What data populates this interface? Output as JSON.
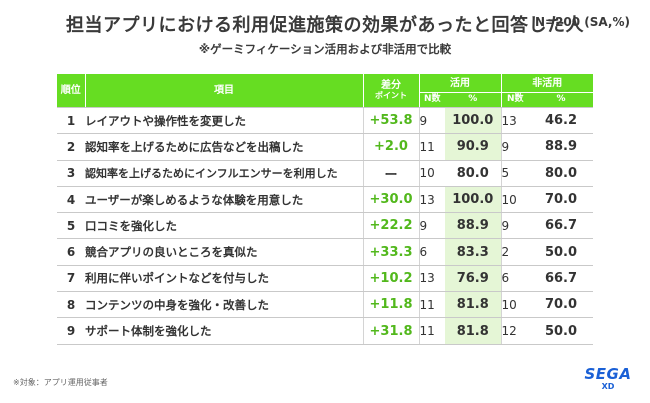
{
  "title": "担当アプリにおける利用促進施策の効果があったと回答した人",
  "sample_note": "N=200 (SA,%)",
  "subtitle": "※ゲーミフィケーション活用および非活用で比較",
  "headers": {
    "rank": "順位",
    "item": "項目",
    "lift_line1": "差分",
    "lift_line2": "ポイント",
    "used": "活用",
    "not_used": "非活用",
    "n": "N数",
    "pct": "%"
  },
  "rows": [
    {
      "rank": "1",
      "item": "レイアウトや操作性を変更した",
      "lift": "+53.8",
      "used_n": "9",
      "used_pct": "100.0",
      "non_n": "13",
      "non_pct": "46.2"
    },
    {
      "rank": "2",
      "item": "認知率を上げるために広告などを出稿した",
      "lift": "+2.0",
      "used_n": "11",
      "used_pct": "90.9",
      "non_n": "9",
      "non_pct": "88.9"
    },
    {
      "rank": "3",
      "item": "認知率を上げるためにインフルエンサーを利用した",
      "lift": "ー",
      "used_n": "10",
      "used_pct": "80.0",
      "non_n": "5",
      "non_pct": "80.0"
    },
    {
      "rank": "4",
      "item": "ユーザーが楽しめるような体験を用意した",
      "lift": "+30.0",
      "used_n": "13",
      "used_pct": "100.0",
      "non_n": "10",
      "non_pct": "70.0"
    },
    {
      "rank": "5",
      "item": "口コミを強化した",
      "lift": "+22.2",
      "used_n": "9",
      "used_pct": "88.9",
      "non_n": "9",
      "non_pct": "66.7"
    },
    {
      "rank": "6",
      "item": "競合アプリの良いところを真似た",
      "lift": "+33.3",
      "used_n": "6",
      "used_pct": "83.3",
      "non_n": "2",
      "non_pct": "50.0"
    },
    {
      "rank": "7",
      "item": "利用に伴いポイントなどを付与した",
      "lift": "+10.2",
      "used_n": "13",
      "used_pct": "76.9",
      "non_n": "6",
      "non_pct": "66.7"
    },
    {
      "rank": "8",
      "item": "コンテンツの中身を強化・改善した",
      "lift": "+11.8",
      "used_n": "11",
      "used_pct": "81.8",
      "non_n": "10",
      "non_pct": "70.0"
    },
    {
      "rank": "9",
      "item": "サポート体制を強化した",
      "lift": "+31.8",
      "used_n": "11",
      "used_pct": "81.8",
      "non_n": "12",
      "non_pct": "50.0"
    }
  ],
  "footnote": "※対象：アプリ運用従事者",
  "logo": {
    "brand": "SEGA",
    "sub": "XD"
  },
  "colors": {
    "header_green": "#66dd22",
    "lift_green": "#52b81c",
    "highlight": "#e5f6d6",
    "logo_blue": "#1a60d6"
  }
}
